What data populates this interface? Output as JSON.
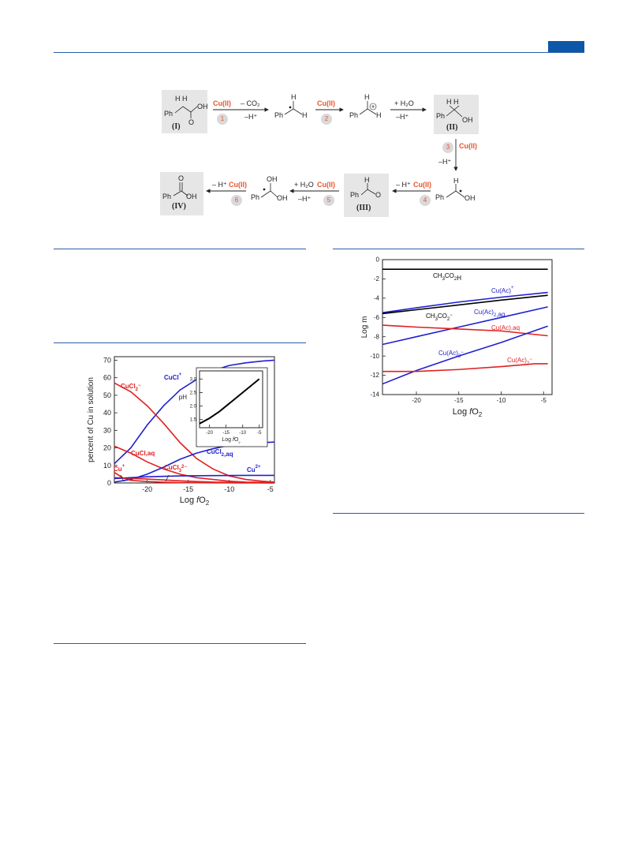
{
  "scheme": {
    "catalyst": "Cu(II)",
    "compounds": [
      "(I)",
      "(II)",
      "(III)",
      "(IV)"
    ],
    "steps": [
      "1",
      "2",
      "3",
      "4",
      "5",
      "6"
    ],
    "reagents": {
      "minus_co2": "– CO₂",
      "minus_h": "–H⁺",
      "plus_h2o": "+ H₂O",
      "minus_h_spaced": "– H⁺"
    },
    "atoms": {
      "ph": "Ph",
      "h": "H",
      "oh": "OH",
      "o": "O",
      "hh": "H  H"
    }
  },
  "chart_data": [
    {
      "type": "line",
      "ylabel": "percent of Cu in solution",
      "xlabel": "Log fO2",
      "xlabel_parts": [
        "Log ",
        "f",
        "O",
        "2"
      ],
      "xlim": [
        -24,
        -4.5
      ],
      "ylim": [
        0,
        72
      ],
      "xticks": [
        -20,
        -15,
        -10,
        -5
      ],
      "yticks": [
        0,
        10,
        20,
        30,
        40,
        50,
        60,
        70
      ],
      "series": [
        {
          "name": "CuCl+",
          "label": "CuCl",
          "charge": "+",
          "color": "#2020d0",
          "x": [
            -24,
            -22,
            -20,
            -18,
            -16,
            -14,
            -12,
            -10,
            -8,
            -6,
            -4.5
          ],
          "y": [
            11,
            20,
            33,
            44,
            53,
            59,
            64,
            67,
            68.5,
            69.5,
            70
          ]
        },
        {
          "name": "CuCl2-",
          "label": "CuCl",
          "sub": "2",
          "charge": "−",
          "color": "#e02020",
          "x": [
            -24,
            -22,
            -20,
            -18,
            -16,
            -14,
            -12,
            -10,
            -8,
            -6,
            -4.5
          ],
          "y": [
            57,
            52,
            44,
            34,
            23,
            14,
            8,
            4,
            2,
            1,
            0.5
          ]
        },
        {
          "name": "CuCl,aq",
          "label": "CuCl,aq",
          "color": "#e02020",
          "x": [
            -24,
            -22,
            -20,
            -18,
            -16,
            -14,
            -12,
            -10,
            -8,
            -6,
            -4.5
          ],
          "y": [
            21,
            17,
            12,
            8,
            5,
            3,
            2,
            1,
            0.5,
            0.3,
            0.2
          ]
        },
        {
          "name": "CuCl2,aq",
          "label": "CuCl",
          "sub": "2",
          "tail": ",aq",
          "color": "#2020d0",
          "x": [
            -24,
            -22,
            -20,
            -18,
            -16,
            -14,
            -12,
            -10,
            -8,
            -6,
            -4.5
          ],
          "y": [
            0.5,
            2,
            5,
            9,
            13.5,
            17,
            19.5,
            21.5,
            22.5,
            23,
            23.3
          ]
        },
        {
          "name": "CuCl3 2-",
          "label": "CuCl",
          "sub": "3",
          "charge": "2−",
          "color": "#e02020",
          "x": [
            -24,
            -22,
            -20,
            -18,
            -16,
            -14,
            -12,
            -10,
            -8,
            -6,
            -4.5
          ],
          "y": [
            3,
            2.6,
            2.2,
            1.7,
            1.2,
            0.8,
            0.5,
            0.3,
            0.2,
            0.1,
            0.05
          ]
        },
        {
          "name": "Cu2+",
          "label": "Cu",
          "charge": "2+",
          "color": "#2020d0",
          "x": [
            -24,
            -20,
            -16,
            -12,
            -8,
            -4.5
          ],
          "y": [
            2.5,
            3.5,
            4,
            4.2,
            4.3,
            4.3
          ]
        },
        {
          "name": "Cu+",
          "label": "Cu",
          "charge": "+",
          "color": "#e02020",
          "x": [
            -24,
            -23,
            -22,
            -20,
            -18,
            -16,
            -12,
            -8,
            -4.5
          ],
          "y": [
            6,
            3,
            1.5,
            0.8,
            0.4,
            0.2,
            0.1,
            0.05,
            0.02
          ]
        }
      ],
      "inset": {
        "ylabel": "pH",
        "xlabel": "Log fO2",
        "xlabel_parts": [
          "Log ",
          "f",
          "O",
          "2"
        ],
        "xlim": [
          -23,
          -4
        ],
        "ylim": [
          1.2,
          3.3
        ],
        "xticks": [
          -20,
          -15,
          -10,
          -5
        ],
        "yticks": [
          1.5,
          2.0,
          2.5,
          3.0
        ],
        "series": [
          {
            "name": "pH",
            "color": "#000000",
            "x": [
              -23,
              -20,
              -17,
              -15,
              -13,
              -11,
              -9,
              -7,
              -5
            ],
            "y": [
              1.35,
              1.55,
              1.8,
              2.0,
              2.2,
              2.4,
              2.6,
              2.8,
              3.0
            ]
          }
        ]
      }
    },
    {
      "type": "line",
      "ylabel": "Log m",
      "xlabel": "Log fO2",
      "xlabel_parts": [
        "Log ",
        "f",
        "O",
        "2"
      ],
      "xlim": [
        -24,
        -4
      ],
      "ylim": [
        -14,
        0
      ],
      "xticks": [
        -20,
        -15,
        -10,
        -5
      ],
      "yticks": [
        0,
        -2,
        -4,
        -6,
        -8,
        -10,
        -12,
        -14
      ],
      "series": [
        {
          "name": "CH3CO2H",
          "label": "CH",
          "sub": "3",
          "mid": "CO",
          "sub2": "2",
          "tail": "H",
          "color": "#000000",
          "x": [
            -24,
            -4.5
          ],
          "y": [
            -1.0,
            -1.0
          ]
        },
        {
          "name": "Cu(Ac)+",
          "label": "Cu(Ac)",
          "charge": "+",
          "color": "#2020d0",
          "x": [
            -24,
            -20,
            -15,
            -10,
            -4.5
          ],
          "y": [
            -5.5,
            -5.0,
            -4.4,
            -3.9,
            -3.4
          ]
        },
        {
          "name": "CH3CO2-",
          "label": "CH",
          "sub": "3",
          "mid": "CO",
          "sub2": "2",
          "charge": "−",
          "color": "#000000",
          "x": [
            -24,
            -20,
            -15,
            -10,
            -4.5
          ],
          "y": [
            -5.6,
            -5.2,
            -4.7,
            -4.2,
            -3.7
          ]
        },
        {
          "name": "Cu(Ac)2,aq",
          "label": "Cu(Ac)",
          "sub": "2",
          "tail": ",aq",
          "color": "#2020d0",
          "x": [
            -24,
            -20,
            -15,
            -10,
            -4.5
          ],
          "y": [
            -8.8,
            -8.0,
            -7.0,
            -6.0,
            -4.9
          ]
        },
        {
          "name": "Cu(Ac),aq",
          "label": "Cu(Ac),aq",
          "color": "#e02020",
          "x": [
            -24,
            -20,
            -15,
            -10,
            -4.5
          ],
          "y": [
            -6.8,
            -7.0,
            -7.2,
            -7.4,
            -7.9
          ]
        },
        {
          "name": "Cu(Ac)3-",
          "label": "Cu(Ac)",
          "sub": "3",
          "charge": "−",
          "color": "#2020d0",
          "x": [
            -24,
            -20,
            -15,
            -10,
            -4.5
          ],
          "y": [
            -12.9,
            -11.5,
            -10.0,
            -8.6,
            -6.9
          ]
        },
        {
          "name": "Cu(Ac)2-",
          "label": "Cu(Ac)",
          "sub": "2",
          "charge": "−",
          "color": "#e02020",
          "x": [
            -24,
            -20,
            -15,
            -10,
            -6,
            -4.5
          ],
          "y": [
            -11.6,
            -11.6,
            -11.4,
            -11.1,
            -10.8,
            -10.8
          ]
        }
      ]
    }
  ]
}
